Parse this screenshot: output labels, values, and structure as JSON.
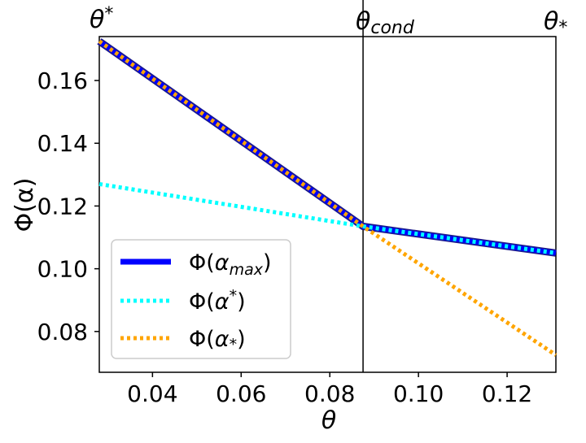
{
  "chart_data": {
    "type": "line",
    "xlabel": "θ",
    "ylabel": "Φ(α)",
    "xlim": [
      0.028,
      0.131
    ],
    "ylim": [
      0.067,
      0.174
    ],
    "xticks": [
      0.04,
      0.06,
      0.08,
      0.1,
      0.12
    ],
    "xtick_labels": [
      "0.04",
      "0.06",
      "0.08",
      "0.10",
      "0.12"
    ],
    "yticks": [
      0.08,
      0.1,
      0.12,
      0.14,
      0.16
    ],
    "ytick_labels": [
      "0.08",
      "0.10",
      "0.12",
      "0.14",
      "0.16"
    ],
    "vline_x": 0.0875,
    "top_labels": [
      {
        "text": "θ*",
        "anchor": "left"
      },
      {
        "text": "θcond",
        "anchor": "vline"
      },
      {
        "text": "θ*",
        "anchor": "right"
      }
    ],
    "series": [
      {
        "name": "Φ(α_max)",
        "legend_label": "Φ(αmax)",
        "style": "solid",
        "color": "#0000ff",
        "outline": "#1a1a8c",
        "x": [
          0.028,
          0.0875,
          0.131
        ],
        "y": [
          0.1725,
          0.1135,
          0.105
        ]
      },
      {
        "name": "Φ(α*)",
        "legend_label": "Φ(α*)",
        "style": "dotted",
        "color": "#00ffff",
        "x": [
          0.028,
          0.0875,
          0.131
        ],
        "y": [
          0.127,
          0.1135,
          0.105
        ]
      },
      {
        "name": "Φ(α_*)",
        "legend_label": "Φ(α*)",
        "style": "dotted",
        "color": "#ffa500",
        "x": [
          0.028,
          0.0875,
          0.131
        ],
        "y": [
          0.1725,
          0.1135,
          0.0725
        ]
      }
    ],
    "legend_position": "lower-left"
  }
}
